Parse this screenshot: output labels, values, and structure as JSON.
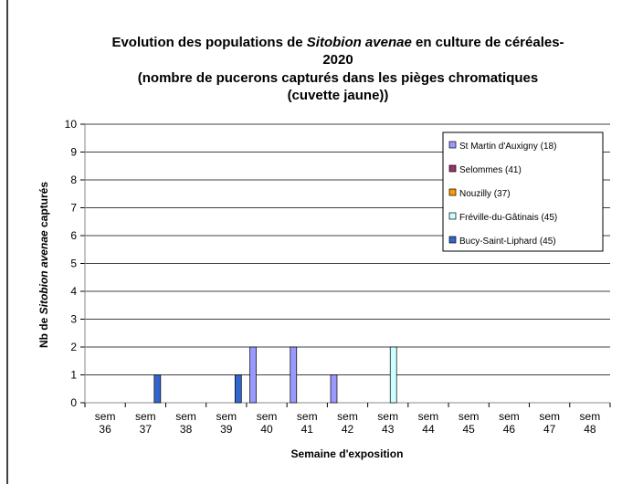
{
  "chart_data": {
    "type": "bar",
    "title": [
      "Evolution des populations de ",
      "Sitobion avenae",
      " en culture de céréales- 2020"
    ],
    "subtitle": "(nombre de pucerons capturés dans les pièges chromatiques (cuvette jaune))",
    "x_label": "Semaine d'exposition",
    "y_label": [
      "Nb de ",
      "Sitobion avenae",
      " capturés"
    ],
    "categories": [
      "sem 36",
      "sem 37",
      "sem 38",
      "sem 39",
      "sem 40",
      "sem 41",
      "sem 42",
      "sem 43",
      "sem 44",
      "sem 45",
      "sem 46",
      "sem 47",
      "sem 48"
    ],
    "series": [
      {
        "name": "St Martin d'Auxigny (18)",
        "color": "#9999ff",
        "values": [
          0,
          0,
          0,
          0,
          2,
          2,
          1,
          0,
          0,
          0,
          0,
          0,
          0
        ]
      },
      {
        "name": "Selommes (41)",
        "color": "#993366",
        "values": [
          0,
          0,
          0,
          0,
          0,
          0,
          0,
          0,
          0,
          0,
          0,
          0,
          0
        ]
      },
      {
        "name": "Nouzilly (37)",
        "color": "#ff9900",
        "values": [
          0,
          0,
          0,
          0,
          0,
          0,
          0,
          0,
          0,
          0,
          0,
          0,
          0
        ]
      },
      {
        "name": "Fréville-du-Gâtinais (45)",
        "color": "#ccffff",
        "values": [
          0,
          0,
          0,
          0,
          0,
          0,
          0,
          2,
          0,
          0,
          0,
          0,
          0
        ]
      },
      {
        "name": "Bucy-Saint-Liphard (45)",
        "color": "#3366cc",
        "values": [
          0,
          1,
          0,
          1,
          0,
          0,
          0,
          0,
          0,
          0,
          0,
          0,
          0
        ]
      }
    ],
    "ylim": [
      0,
      10
    ],
    "yticks": [
      0,
      1,
      2,
      3,
      4,
      5,
      6,
      7,
      8,
      9,
      10
    ],
    "grid": true
  }
}
